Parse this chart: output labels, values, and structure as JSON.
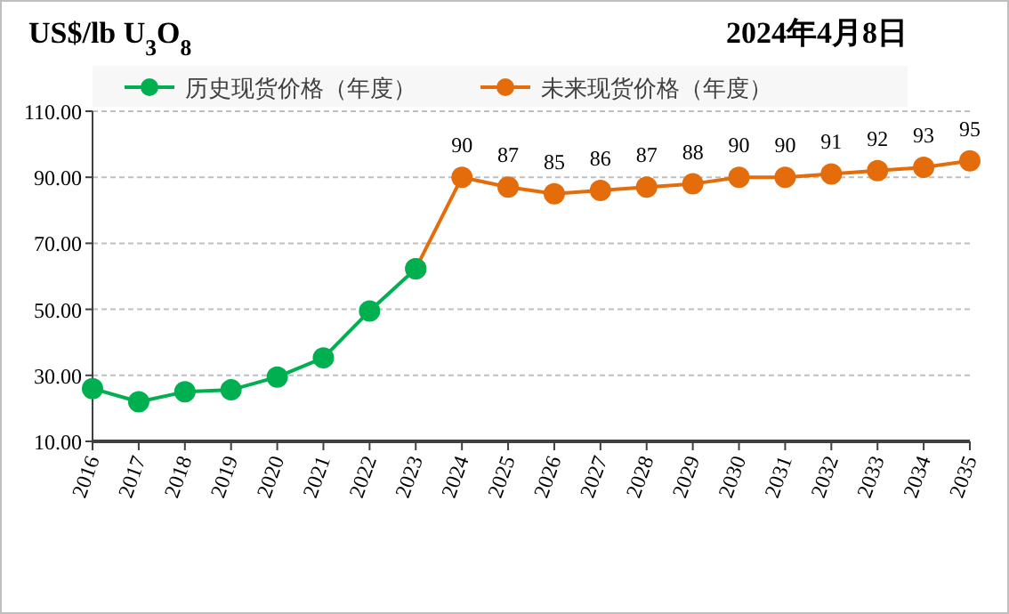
{
  "chart_data": {
    "type": "line",
    "title": "US$/lb U$_{3}$O$_{8}$",
    "subtitle": "2024年4月8日",
    "categories": [
      "2016",
      "2017",
      "2018",
      "2019",
      "2020",
      "2021",
      "2022",
      "2023",
      "2024",
      "2025",
      "2026",
      "2027",
      "2028",
      "2029",
      "2030",
      "2031",
      "2032",
      "2033",
      "2034",
      "2035"
    ],
    "series": [
      {
        "name": "历史现货价格（年度）",
        "color": "#00b050",
        "values": [
          26,
          22,
          25,
          25.6,
          29.5,
          35.3,
          49.5,
          62.3,
          null,
          null,
          null,
          null,
          null,
          null,
          null,
          null,
          null,
          null,
          null,
          null
        ]
      },
      {
        "name": "未来现货价格（年度）",
        "color": "#e46c0a",
        "values": [
          null,
          null,
          null,
          null,
          null,
          null,
          null,
          62.3,
          90,
          87,
          85,
          86,
          87,
          88,
          90,
          90,
          91,
          92,
          93,
          95
        ],
        "value_labels": [
          null,
          null,
          null,
          null,
          null,
          null,
          null,
          null,
          "90",
          "87",
          "85",
          "86",
          "87",
          "88",
          "90",
          "90",
          "91",
          "92",
          "93",
          "95"
        ]
      }
    ],
    "ylim": [
      10,
      110
    ],
    "yticks": [
      {
        "value": 10,
        "label": "10.00"
      },
      {
        "value": 30,
        "label": "30.00"
      },
      {
        "value": 50,
        "label": "50.00"
      },
      {
        "value": 70,
        "label": "70.00"
      },
      {
        "value": 90,
        "label": "90.00"
      },
      {
        "value": 110,
        "label": "110.00"
      }
    ],
    "grid": "y",
    "legend": "top",
    "marker": "circle",
    "line_style": "solid"
  }
}
